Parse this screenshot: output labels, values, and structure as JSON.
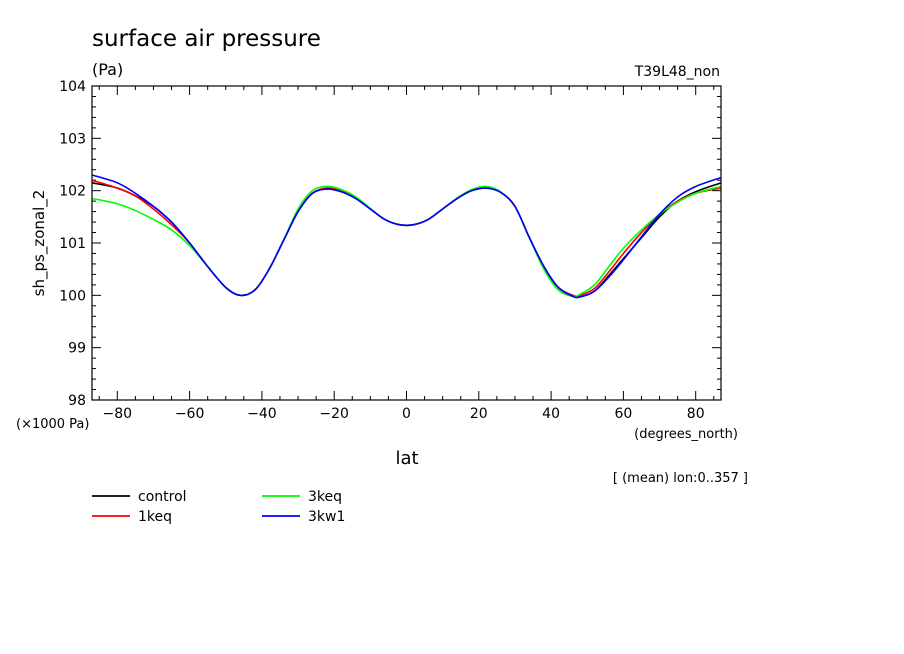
{
  "chart_data": {
    "type": "line",
    "title": "surface air pressure",
    "units": "(Pa)",
    "run_label": "T39L48_non",
    "ylabel": "sh_ps_zonal_2",
    "yscale_note": "(×1000 Pa)",
    "xlabel": "lat",
    "xunits": "(degrees_north)",
    "footer": "[ (mean) lon:0..357 ]",
    "xlim": [
      -87,
      87
    ],
    "ylim": [
      98,
      104
    ],
    "xticks": [
      -80,
      -60,
      -40,
      -20,
      0,
      20,
      40,
      60,
      80
    ],
    "yticks": [
      98,
      99,
      100,
      101,
      102,
      103,
      104
    ],
    "x": [
      -87,
      -80,
      -75,
      -70,
      -65,
      -60,
      -55,
      -50,
      -46,
      -42,
      -38,
      -34,
      -30,
      -26,
      -22,
      -18,
      -14,
      -10,
      -6,
      -2,
      2,
      6,
      10,
      14,
      18,
      22,
      26,
      30,
      34,
      38,
      42,
      46,
      48,
      52,
      56,
      60,
      65,
      70,
      75,
      80,
      87
    ],
    "series": [
      {
        "name": "control",
        "color": "#000000",
        "values": [
          102.15,
          102.05,
          101.9,
          101.7,
          101.4,
          101.0,
          100.55,
          100.15,
          100.0,
          100.1,
          100.5,
          101.05,
          101.6,
          101.95,
          102.03,
          101.98,
          101.85,
          101.65,
          101.45,
          101.35,
          101.35,
          101.45,
          101.65,
          101.85,
          102.0,
          102.05,
          101.97,
          101.7,
          101.1,
          100.55,
          100.15,
          100.0,
          99.97,
          100.08,
          100.38,
          100.7,
          101.1,
          101.5,
          101.8,
          101.98,
          102.15
        ]
      },
      {
        "name": "1keq",
        "color": "#ff0000",
        "values": [
          102.2,
          102.05,
          101.9,
          101.65,
          101.35,
          101.0,
          100.55,
          100.15,
          100.0,
          100.1,
          100.5,
          101.05,
          101.6,
          101.95,
          102.05,
          102.0,
          101.86,
          101.65,
          101.45,
          101.35,
          101.35,
          101.45,
          101.65,
          101.85,
          102.0,
          102.05,
          101.97,
          101.7,
          101.1,
          100.55,
          100.15,
          100.0,
          100.0,
          100.13,
          100.45,
          100.8,
          101.2,
          101.55,
          101.8,
          101.95,
          102.05
        ]
      },
      {
        "name": "3keq",
        "color": "#00ff00",
        "values": [
          101.85,
          101.75,
          101.62,
          101.45,
          101.25,
          100.95,
          100.55,
          100.15,
          100.0,
          100.1,
          100.5,
          101.05,
          101.65,
          102.0,
          102.08,
          102.02,
          101.88,
          101.66,
          101.45,
          101.35,
          101.35,
          101.45,
          101.65,
          101.86,
          102.02,
          102.08,
          101.98,
          101.7,
          101.1,
          100.5,
          100.1,
          99.98,
          100.02,
          100.2,
          100.55,
          100.9,
          101.25,
          101.55,
          101.78,
          101.95,
          102.08
        ]
      },
      {
        "name": "3kw1",
        "color": "#0000ff",
        "values": [
          102.3,
          102.15,
          101.95,
          101.7,
          101.4,
          101.0,
          100.55,
          100.15,
          100.0,
          100.1,
          100.5,
          101.05,
          101.6,
          101.95,
          102.03,
          101.98,
          101.85,
          101.65,
          101.45,
          101.35,
          101.35,
          101.45,
          101.65,
          101.85,
          102.0,
          102.05,
          101.97,
          101.7,
          101.1,
          100.55,
          100.15,
          99.98,
          99.97,
          100.08,
          100.35,
          100.68,
          101.12,
          101.55,
          101.88,
          102.08,
          102.25
        ]
      }
    ],
    "legend": [
      "control",
      "1keq",
      "3keq",
      "3kw1"
    ],
    "grid": false
  }
}
